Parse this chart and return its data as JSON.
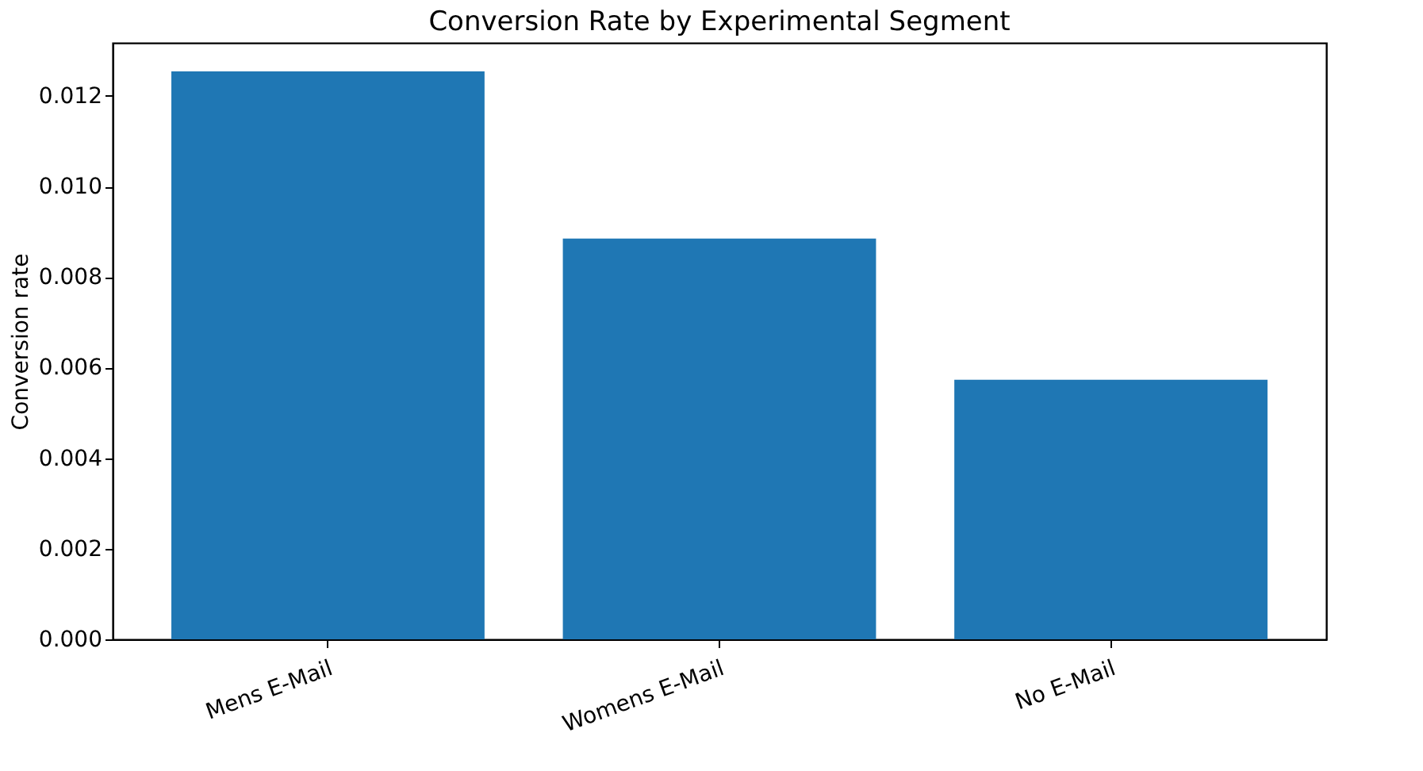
{
  "chart_data": {
    "type": "bar",
    "title": "Conversion Rate by Experimental Segment",
    "ylabel": "Conversion rate",
    "categories": [
      "Mens E-Mail",
      "Womens E-Mail",
      "No E-Mail"
    ],
    "values": [
      0.01254,
      0.00885,
      0.00573
    ],
    "color": "#1f77b4",
    "ylim": [
      0,
      0.01317
    ],
    "yticks": [
      {
        "value": 0,
        "label": "0.000"
      },
      0.002,
      0.004,
      0.006,
      0.008,
      {
        "value": 0.01,
        "label": "0.010"
      },
      0.012
    ],
    "grid": false
  }
}
